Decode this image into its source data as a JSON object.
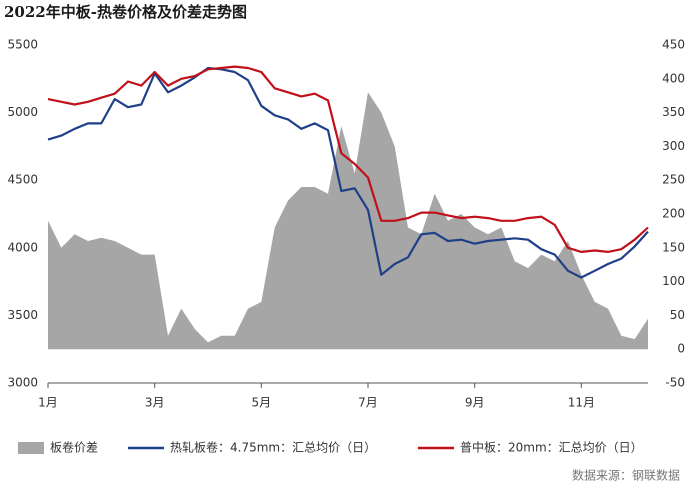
{
  "chart_data": {
    "type": "line",
    "title": "2022年中板-热卷价格及价差走势图",
    "source": "数据来源：钢联数据",
    "categories": [
      "1月",
      null,
      null,
      null,
      null,
      null,
      null,
      null,
      "3月",
      null,
      null,
      null,
      null,
      null,
      null,
      null,
      "5月",
      null,
      null,
      null,
      null,
      null,
      null,
      null,
      "7月",
      null,
      null,
      null,
      null,
      null,
      null,
      null,
      "9月",
      null,
      null,
      null,
      null,
      null,
      null,
      null,
      "11月",
      null,
      null,
      null,
      null,
      null
    ],
    "ylim": [
      3000,
      5500
    ],
    "yticks": [
      3000,
      3500,
      4000,
      4500,
      5000,
      5500
    ],
    "y2lim": [
      -50,
      450
    ],
    "y2ticks": [
      -50,
      0,
      50,
      100,
      150,
      200,
      250,
      300,
      350,
      400,
      450
    ],
    "series": [
      {
        "name": "板卷价差",
        "color": "#a6a6a6",
        "axis": "y2",
        "area": true,
        "values": [
          190,
          150,
          170,
          160,
          165,
          160,
          150,
          140,
          140,
          20,
          60,
          30,
          10,
          20,
          20,
          60,
          70,
          180,
          220,
          240,
          240,
          230,
          330,
          260,
          380,
          350,
          300,
          180,
          170,
          230,
          190,
          200,
          180,
          170,
          180,
          130,
          120,
          140,
          130,
          160,
          110,
          70,
          60,
          20,
          15,
          45
        ]
      },
      {
        "name": "热轧板卷：4.75mm：汇总均价（日）",
        "color": "#1f3f87",
        "values": [
          4800,
          4830,
          4880,
          4920,
          4920,
          5100,
          5040,
          5060,
          5290,
          5150,
          5200,
          5260,
          5330,
          5320,
          5300,
          5240,
          5050,
          4980,
          4950,
          4880,
          4920,
          4870,
          4420,
          4440,
          4280,
          3800,
          3880,
          3930,
          4100,
          4110,
          4050,
          4060,
          4030,
          4050,
          4060,
          4070,
          4060,
          3990,
          3950,
          3830,
          3780,
          3830,
          3880,
          3920,
          4010,
          4120
        ]
      },
      {
        "name": "普中板：20mm：汇总均价（日）",
        "color": "#c0101a",
        "values": [
          5100,
          5080,
          5060,
          5080,
          5110,
          5140,
          5230,
          5200,
          5300,
          5200,
          5250,
          5270,
          5320,
          5330,
          5340,
          5330,
          5300,
          5180,
          5150,
          5120,
          5140,
          5090,
          4700,
          4620,
          4520,
          4200,
          4200,
          4220,
          4260,
          4260,
          4240,
          4220,
          4230,
          4220,
          4200,
          4200,
          4220,
          4230,
          4170,
          4000,
          3970,
          3980,
          3970,
          3990,
          4060,
          4150
        ]
      }
    ]
  }
}
